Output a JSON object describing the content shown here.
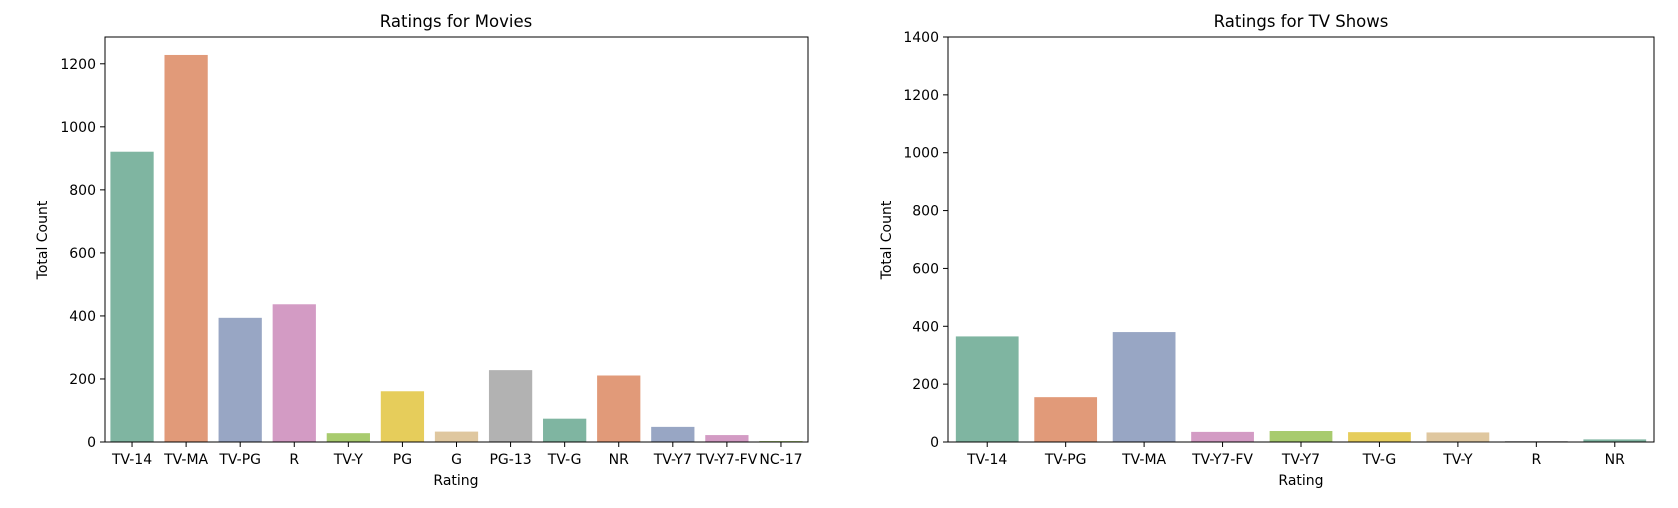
{
  "chart_data": [
    {
      "type": "bar",
      "title": "Ratings for Movies",
      "xlabel": "Rating",
      "ylabel": "Total Count",
      "categories": [
        "TV-14",
        "TV-MA",
        "TV-PG",
        "R",
        "TV-Y",
        "PG",
        "G",
        "PG-13",
        "TV-G",
        "NR",
        "TV-Y7",
        "TV-Y7-FV",
        "NC-17"
      ],
      "values": [
        921,
        1228,
        394,
        437,
        28,
        161,
        33,
        228,
        74,
        211,
        48,
        22,
        3
      ],
      "yticks": [
        0,
        200,
        400,
        600,
        800,
        1000,
        1200
      ],
      "ylim": [
        0,
        1285
      ],
      "colors": [
        "#7fb5a1",
        "#e19a79",
        "#98a6c4",
        "#d39bc4",
        "#a8cb6e",
        "#e6cd5b",
        "#dfc79f",
        "#b2b2b2",
        "#7fb5a1",
        "#e19a79",
        "#98a6c4",
        "#d39bc4",
        "#a8cb6e"
      ],
      "grid": false
    },
    {
      "type": "bar",
      "title": "Ratings for TV Shows",
      "xlabel": "Rating",
      "ylabel": "Total Count",
      "categories": [
        "TV-14",
        "TV-PG",
        "TV-MA",
        "TV-Y7-FV",
        "TV-Y7",
        "TV-G",
        "TV-Y",
        "R",
        "NR"
      ],
      "values": [
        365,
        155,
        380,
        35,
        38,
        34,
        33,
        3,
        9
      ],
      "yticks": [
        0,
        200,
        400,
        600,
        800,
        1000,
        1200,
        1400
      ],
      "ylim": [
        0,
        1400
      ],
      "colors": [
        "#7fb5a1",
        "#e19a79",
        "#98a6c4",
        "#d39bc4",
        "#a8cb6e",
        "#e6cd5b",
        "#dfc79f",
        "#b2b2b2",
        "#7fb5a1"
      ],
      "grid": false
    }
  ]
}
